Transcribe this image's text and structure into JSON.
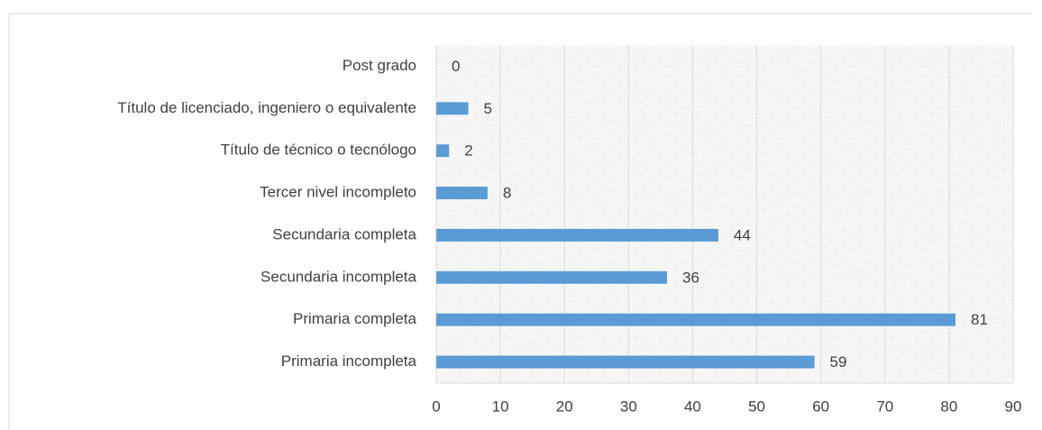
{
  "chart_data": {
    "type": "bar",
    "orientation": "horizontal",
    "categories": [
      "Post grado",
      "Título de licenciado, ingeniero o equivalente",
      "Título de técnico o tecnólogo",
      "Tercer nivel incompleto",
      "Secundaria completa",
      "Secundaria incompleta",
      "Primaria completa",
      "Primaria incompleta"
    ],
    "values": [
      0,
      5,
      2,
      8,
      44,
      36,
      81,
      59
    ],
    "color": "#5b9bd5",
    "xlim": [
      0,
      90
    ],
    "xticks": [
      0,
      10,
      20,
      30,
      40,
      50,
      60,
      70,
      80,
      90
    ],
    "grid": true
  }
}
